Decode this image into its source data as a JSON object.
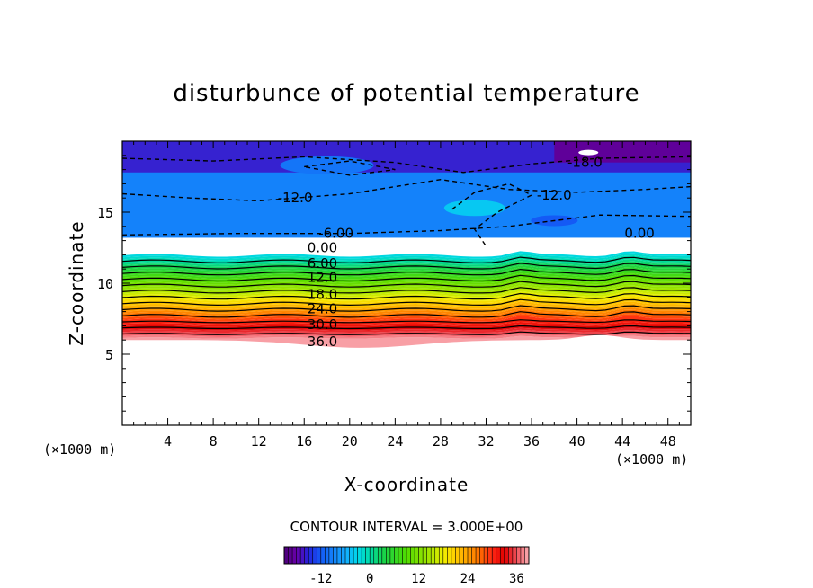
{
  "chart_data": {
    "type": "heatmap",
    "title": "disturbunce of potential temperature",
    "xlabel": "X-coordinate",
    "ylabel": "Z-coordinate",
    "x_unit": "(×1000 m)",
    "z_unit": "(×1000 m)",
    "xlim": [
      0,
      50
    ],
    "ylim": [
      0,
      20
    ],
    "xticks": [
      4,
      8,
      12,
      16,
      20,
      24,
      28,
      32,
      36,
      40,
      44,
      48
    ],
    "yticks": [
      5,
      10,
      15
    ],
    "contour_interval_text": "CONTOUR INTERVAL = 3.000E+00",
    "colorbar": {
      "range": [
        -21,
        39
      ],
      "ticks": [
        -12,
        0,
        12,
        24,
        36
      ]
    },
    "contour_labels": [
      "-18.0",
      "-12.0",
      "-12.0",
      "-6.00",
      "0.00",
      "0.00",
      "6.00",
      "12.0",
      "18.0",
      "24.0",
      "30.0",
      "36.0"
    ],
    "data_description_values": {
      "blank_region_below_z": 6,
      "top_minimum": -18,
      "bottom_maximum": 39
    }
  }
}
